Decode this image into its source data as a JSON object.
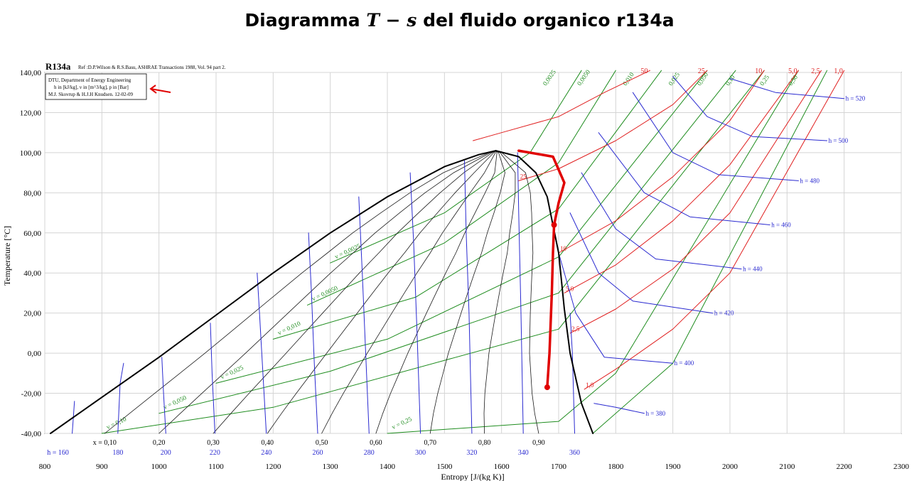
{
  "page": {
    "title_prefix": "Diagramma ",
    "title_math": "T − s",
    "title_suffix": " del fluido organico r134a"
  },
  "chart_data": {
    "type": "line",
    "title": "R134a",
    "reference": "Ref :D.P.Wilson & R.S.Basu, ASHRAE Transactions 1988, Vol. 94 part 2.",
    "info_box": [
      "DTU, Department of Energy Engineering",
      "h in [kJ/kg], v in [m^3/kg], p in [Bar]",
      "M.J. Skovrup & H.J.H Knudsen. 12-02-09"
    ],
    "xlabel": "Entropy [J/(kg K)]",
    "ylabel": "Temperature [°C]",
    "xlim": [
      800,
      2300
    ],
    "ylim": [
      -40,
      140
    ],
    "x_ticks": [
      800,
      900,
      1000,
      1100,
      1200,
      1300,
      1400,
      1500,
      1600,
      1700,
      1800,
      1900,
      2000,
      2100,
      2200,
      2300
    ],
    "x_tick_labels": [
      "800",
      "900",
      "1000",
      "1100",
      "1200",
      "1300",
      "1400",
      "1500",
      "1600",
      "1700",
      "1800",
      "1900",
      "2000",
      "2100",
      "2200",
      "2300"
    ],
    "y_ticks": [
      -40,
      -20,
      0,
      20,
      40,
      60,
      80,
      100,
      120,
      140
    ],
    "y_tick_labels": [
      "-40,00",
      "-20,00",
      "0,00",
      "20,00",
      "40,00",
      "60,00",
      "80,00",
      "100,00",
      "120,00",
      "140,00"
    ],
    "grid": true,
    "colors": {
      "dome": "#000000",
      "quality": "#1a1a1a",
      "enthalpy": "#2a2ad0",
      "pressure": "#e02020",
      "volume": "#1e8c1e",
      "process": "#e00000"
    },
    "saturation_dome": {
      "liquid": [
        [
          810,
          -40
        ],
        [
          900,
          -22
        ],
        [
          1000,
          -2
        ],
        [
          1100,
          19
        ],
        [
          1200,
          40
        ],
        [
          1300,
          60
        ],
        [
          1400,
          78
        ],
        [
          1500,
          93
        ],
        [
          1560,
          99
        ],
        [
          1590,
          101
        ]
      ],
      "vapor": [
        [
          1590,
          101
        ],
        [
          1630,
          98
        ],
        [
          1660,
          90
        ],
        [
          1680,
          78
        ],
        [
          1700,
          50
        ],
        [
          1710,
          22
        ],
        [
          1720,
          0
        ],
        [
          1740,
          -25
        ],
        [
          1760,
          -40
        ]
      ]
    },
    "quality_lines": {
      "labels": [
        "x = 0,10",
        "0,20",
        "0,30",
        "0,40",
        "0,50",
        "0,60",
        "0,70",
        "0,80",
        "0,90"
      ],
      "values": [
        0.1,
        0.2,
        0.3,
        0.4,
        0.5,
        0.6,
        0.7,
        0.8,
        0.9
      ]
    },
    "enthalpy_lines": [
      {
        "label": "h = 160",
        "points": [
          [
            848,
            -40
          ],
          [
            852,
            -24
          ]
        ]
      },
      {
        "label": "180",
        "points": [
          [
            928,
            -40
          ],
          [
            932,
            -15
          ],
          [
            938,
            -5
          ]
        ]
      },
      {
        "label": "200",
        "points": [
          [
            1012,
            -40
          ],
          [
            1008,
            -20
          ],
          [
            1005,
            -2
          ]
        ]
      },
      {
        "label": "220",
        "points": [
          [
            1098,
            -40
          ],
          [
            1093,
            -10
          ],
          [
            1090,
            15
          ]
        ]
      },
      {
        "label": "240",
        "points": [
          [
            1188,
            -40
          ],
          [
            1182,
            -10
          ],
          [
            1176,
            20
          ],
          [
            1172,
            40
          ]
        ]
      },
      {
        "label": "260",
        "points": [
          [
            1278,
            -40
          ],
          [
            1272,
            -5
          ],
          [
            1267,
            30
          ],
          [
            1262,
            60
          ]
        ]
      },
      {
        "label": "280",
        "points": [
          [
            1368,
            -40
          ],
          [
            1362,
            0
          ],
          [
            1356,
            40
          ],
          [
            1350,
            78
          ]
        ]
      },
      {
        "label": "300",
        "points": [
          [
            1458,
            -40
          ],
          [
            1452,
            10
          ],
          [
            1446,
            55
          ],
          [
            1440,
            90
          ]
        ]
      },
      {
        "label": "320",
        "points": [
          [
            1548,
            -40
          ],
          [
            1543,
            20
          ],
          [
            1538,
            60
          ],
          [
            1535,
            96
          ]
        ]
      },
      {
        "label": "340",
        "points": [
          [
            1638,
            -40
          ],
          [
            1634,
            20
          ],
          [
            1630,
            70
          ],
          [
            1628,
            100
          ]
        ]
      },
      {
        "label": "360",
        "points": [
          [
            1728,
            -40
          ],
          [
            1724,
            0
          ],
          [
            1720,
            20
          ]
        ]
      },
      {
        "label": "h = 380",
        "points": [
          [
            1762,
            -25
          ],
          [
            1800,
            -27
          ],
          [
            1850,
            -30
          ]
        ]
      },
      {
        "label": "h = 400",
        "points": [
          [
            1700,
            50
          ],
          [
            1730,
            20
          ],
          [
            1780,
            -2
          ],
          [
            1900,
            -5
          ]
        ]
      },
      {
        "label": "h = 420",
        "points": [
          [
            1720,
            70
          ],
          [
            1770,
            40
          ],
          [
            1830,
            26
          ],
          [
            1970,
            20
          ]
        ]
      },
      {
        "label": "h = 440",
        "points": [
          [
            1740,
            90
          ],
          [
            1800,
            62
          ],
          [
            1870,
            47
          ],
          [
            2020,
            42
          ]
        ]
      },
      {
        "label": "h = 460",
        "points": [
          [
            1770,
            110
          ],
          [
            1850,
            80
          ],
          [
            1930,
            68
          ],
          [
            2070,
            64
          ]
        ]
      },
      {
        "label": "h = 480",
        "points": [
          [
            1830,
            130
          ],
          [
            1900,
            100
          ],
          [
            1980,
            89
          ],
          [
            2120,
            86
          ]
        ]
      },
      {
        "label": "h = 500",
        "points": [
          [
            1900,
            138
          ],
          [
            1960,
            118
          ],
          [
            2040,
            108
          ],
          [
            2170,
            106
          ]
        ]
      },
      {
        "label": "h = 520",
        "points": [
          [
            2000,
            137
          ],
          [
            2080,
            130
          ],
          [
            2200,
            127
          ]
        ]
      }
    ],
    "pressure_lines": [
      {
        "label": "50",
        "points": [
          [
            1550,
            106
          ],
          [
            1600,
            110
          ],
          [
            1700,
            118
          ],
          [
            1780,
            130
          ],
          [
            1860,
            141
          ]
        ]
      },
      {
        "label": "25",
        "points": [
          [
            1630,
            86
          ],
          [
            1700,
            92
          ],
          [
            1800,
            106
          ],
          [
            1900,
            124
          ],
          [
            1960,
            141
          ]
        ]
      },
      {
        "label": "10",
        "points": [
          [
            1700,
            50
          ],
          [
            1800,
            66
          ],
          [
            1900,
            88
          ],
          [
            2000,
            116
          ],
          [
            2060,
            141
          ]
        ]
      },
      {
        "label": "5,0",
        "points": [
          [
            1710,
            30
          ],
          [
            1800,
            44
          ],
          [
            1900,
            66
          ],
          [
            2000,
            94
          ],
          [
            2120,
            141
          ]
        ]
      },
      {
        "label": "2,5",
        "points": [
          [
            1720,
            10
          ],
          [
            1800,
            22
          ],
          [
            1900,
            42
          ],
          [
            2000,
            70
          ],
          [
            2160,
            141
          ]
        ]
      },
      {
        "label": "1,0",
        "points": [
          [
            1745,
            -18
          ],
          [
            1800,
            -8
          ],
          [
            1900,
            12
          ],
          [
            2000,
            40
          ],
          [
            2200,
            141
          ]
        ]
      }
    ],
    "pressure_dome_labels": [
      "25",
      "10",
      "5,0",
      "2,5",
      "1,0"
    ],
    "volume_lines": [
      {
        "label": "v = 0,0025",
        "points": [
          [
            1300,
            45
          ],
          [
            1500,
            70
          ],
          [
            1650,
            100
          ],
          [
            1740,
            141
          ]
        ]
      },
      {
        "label": "v = 0,0050",
        "points": [
          [
            1260,
            24
          ],
          [
            1500,
            55
          ],
          [
            1700,
            95
          ],
          [
            1800,
            141
          ]
        ]
      },
      {
        "label": "v = 0,010",
        "points": [
          [
            1200,
            7
          ],
          [
            1450,
            28
          ],
          [
            1700,
            72
          ],
          [
            1880,
            141
          ]
        ]
      },
      {
        "label": "v = 0,025",
        "points": [
          [
            1100,
            -15
          ],
          [
            1400,
            7
          ],
          [
            1700,
            48
          ],
          [
            1960,
            141
          ]
        ]
      },
      {
        "label": "v = 0,050",
        "points": [
          [
            1000,
            -30
          ],
          [
            1300,
            -9
          ],
          [
            1700,
            30
          ],
          [
            2010,
            141
          ]
        ]
      },
      {
        "label": "v = 0,10",
        "points": [
          [
            900,
            -40
          ],
          [
            1200,
            -27
          ],
          [
            1700,
            12
          ],
          [
            2060,
            141
          ]
        ]
      },
      {
        "label": "v = 0,25",
        "points": [
          [
            1400,
            -40
          ],
          [
            1700,
            -34
          ],
          [
            1800,
            -10
          ],
          [
            2120,
            141
          ]
        ]
      },
      {
        "label": "v = 0,50",
        "points": [
          [
            1760,
            -40
          ],
          [
            1900,
            -5
          ],
          [
            2170,
            141
          ]
        ]
      }
    ],
    "superheat_volume_labels": [
      "0,0025",
      "0,0050",
      "0,010",
      "0,025",
      "0,050",
      "0,10",
      "0,25",
      "0,50"
    ],
    "process_path": [
      [
        1680,
        -17
      ],
      [
        1684,
        0
      ],
      [
        1688,
        30
      ],
      [
        1690,
        50
      ],
      [
        1692,
        64
      ],
      [
        1700,
        75
      ],
      [
        1710,
        85
      ],
      [
        1690,
        98
      ],
      [
        1630,
        101
      ]
    ]
  }
}
